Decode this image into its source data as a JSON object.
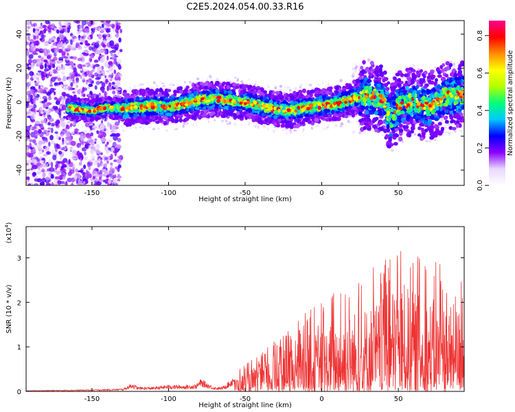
{
  "figure": {
    "title": "C2E5.2024.054.00.33.R16"
  },
  "chart_data": [
    {
      "type": "heatmap",
      "xlabel": "Height of straight line (km)",
      "ylabel": "Frequency (Hz)",
      "xlim": [
        -193,
        93
      ],
      "ylim": [
        -49,
        48
      ],
      "xticks": [
        -150,
        -100,
        -50,
        0,
        50
      ],
      "xtick_labels": [
        "-150",
        "-100",
        "-50",
        "0",
        "50"
      ],
      "yticks": [
        -40,
        -20,
        0,
        20,
        40
      ],
      "ytick_labels": [
        "-40",
        "-20",
        "0",
        "20",
        "40"
      ],
      "grid": false,
      "colorbar": {
        "label": "Normalized spectral amplitude",
        "range": [
          0.0,
          0.88
        ],
        "ticks": [
          0.0,
          0.2,
          0.4,
          0.6,
          0.8
        ],
        "tick_labels": [
          "0.0",
          "0.2",
          "0.4",
          "0.6",
          "0.8"
        ],
        "colormap": [
          "#ffffff",
          "#e8d8ff",
          "#8a00ff",
          "#0000ff",
          "#00c8ff",
          "#00ff7a",
          "#b4ff00",
          "#ffff00",
          "#ff8c00",
          "#ff0000",
          "#ff0090"
        ]
      },
      "ridge": {
        "x": [
          -193,
          -170,
          -150,
          -140,
          -130,
          -120,
          -110,
          -100,
          -90,
          -80,
          -70,
          -60,
          -50,
          -40,
          -30,
          -20,
          -10,
          0,
          10,
          20,
          30,
          40,
          45,
          50,
          60,
          70,
          80,
          93
        ],
        "y": [
          -3,
          -3,
          -5,
          -3,
          -4,
          -3,
          -2,
          -3,
          -1,
          1,
          2,
          1,
          0,
          -2,
          -4,
          -5,
          -3,
          -2,
          -1,
          2,
          4,
          2,
          -10,
          -2,
          0,
          -3,
          3,
          5
        ]
      }
    },
    {
      "type": "line",
      "xlabel": "Height of straight line (km)",
      "ylabel": "SNR (10 * v/v)",
      "y_multiplier": "(x10",
      "y_multiplier_exponent": "4",
      "xlim": [
        -193,
        93
      ],
      "ylim": [
        0,
        3.7
      ],
      "xticks": [
        -150,
        -100,
        -50,
        0,
        50
      ],
      "xtick_labels": [
        "-150",
        "-100",
        "-50",
        "0",
        "50"
      ],
      "yticks": [
        0,
        1,
        2,
        3
      ],
      "ytick_labels": [
        "0",
        "1",
        "2",
        "3"
      ],
      "grid": false,
      "series": [
        {
          "color": "#ee3333",
          "envelope": {
            "x": [
              -193,
              -150,
              -130,
              -126,
              -124,
              -120,
              -110,
              -100,
              -90,
              -82,
              -79,
              -75,
              -70,
              -65,
              -60,
              -55,
              -50,
              -40,
              -30,
              -20,
              -10,
              0,
              10,
              20,
              30,
              40,
              45,
              50,
              55,
              60,
              70,
              80,
              85,
              90,
              93
            ],
            "y": [
              0.02,
              0.04,
              0.06,
              0.14,
              0.2,
              0.1,
              0.1,
              0.15,
              0.14,
              0.16,
              0.28,
              0.2,
              0.1,
              0.1,
              0.25,
              0.5,
              0.6,
              0.9,
              1.2,
              1.4,
              1.8,
              2.0,
              2.3,
              2.6,
              2.8,
              3.0,
              3.2,
              3.7,
              3.4,
              3.2,
              3.0,
              2.9,
              2.8,
              2.8,
              2.5
            ]
          }
        }
      ]
    }
  ]
}
